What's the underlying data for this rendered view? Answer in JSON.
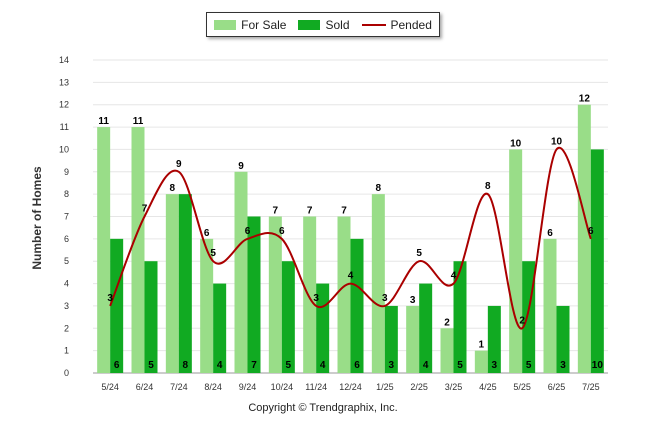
{
  "chart_data": {
    "type": "bar",
    "ylabel": "Number of Homes",
    "ylim": [
      0,
      14
    ],
    "yticks": [
      0,
      1,
      2,
      3,
      4,
      5,
      6,
      7,
      8,
      9,
      10,
      11,
      12,
      13,
      14
    ],
    "grid": true,
    "legend_position": "top-center",
    "categories": [
      "5/24",
      "6/24",
      "7/24",
      "8/24",
      "9/24",
      "10/24",
      "11/24",
      "12/24",
      "1/25",
      "2/25",
      "3/25",
      "4/25",
      "5/25",
      "6/25",
      "7/25"
    ],
    "series": [
      {
        "name": "For Sale",
        "type": "bar",
        "color": "#99dd88",
        "values": [
          11,
          11,
          8,
          6,
          9,
          7,
          7,
          7,
          8,
          3,
          2,
          1,
          10,
          6,
          12
        ]
      },
      {
        "name": "Sold",
        "type": "bar",
        "color": "#11aa22",
        "values": [
          6,
          5,
          8,
          4,
          7,
          5,
          4,
          6,
          3,
          4,
          5,
          3,
          5,
          3,
          10
        ]
      },
      {
        "name": "Pended",
        "type": "line",
        "color": "#aa0000",
        "values": [
          3,
          7,
          9,
          5,
          6,
          6,
          3,
          4,
          3,
          5,
          4,
          8,
          2,
          10,
          6
        ]
      }
    ]
  },
  "footer": {
    "copyright": "Copyright © Trendgraphix, Inc."
  }
}
